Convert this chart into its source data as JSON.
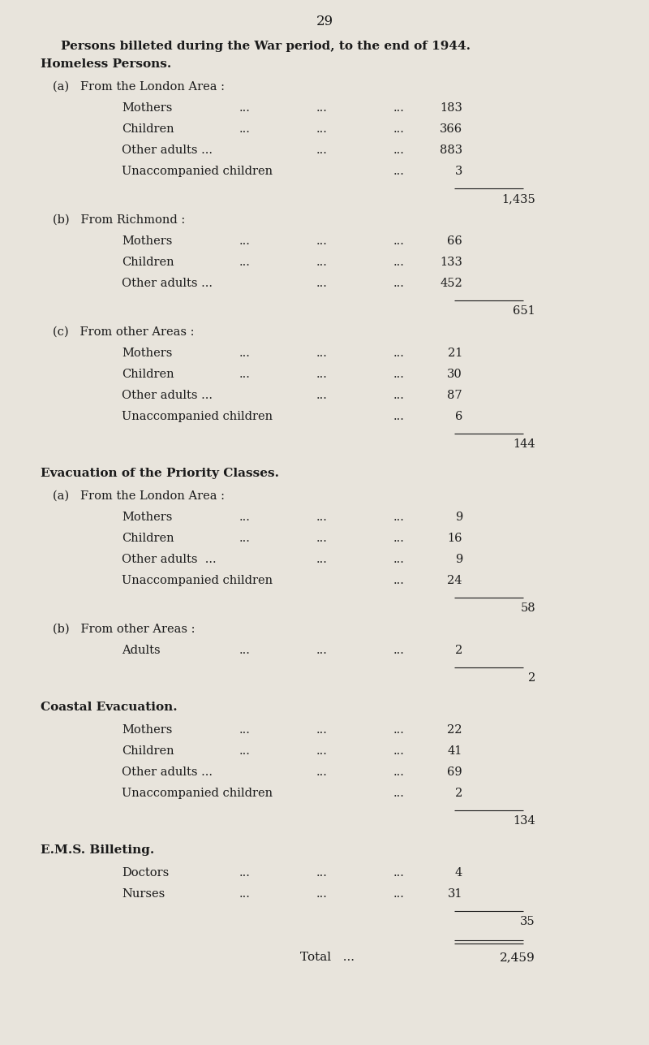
{
  "page_number": "29",
  "bg_color": "#e8e4dc",
  "text_color": "#1a1a1a",
  "title_bold": "Persons billeted during the War period, to the end of 1944.",
  "heading2": "Homeless Persons.",
  "sections": [
    {
      "heading_bold": "Homeless Persons.",
      "subsections": [
        {
          "label": "(a)   From the London Area :",
          "items": [
            {
              "name": "Mothers",
              "has_dots3": true,
              "value": "183"
            },
            {
              "name": "Children",
              "has_dots3": true,
              "value": "366"
            },
            {
              "name": "Other adults ...",
              "has_dots2": true,
              "value": "883"
            },
            {
              "name": "Unaccompanied children",
              "has_dots1": true,
              "value": "3"
            }
          ],
          "subtotal": "1,435"
        },
        {
          "label": "(b)   From Richmond :",
          "items": [
            {
              "name": "Mothers",
              "has_dots3": true,
              "value": "66"
            },
            {
              "name": "Children",
              "has_dots3": true,
              "value": "133"
            },
            {
              "name": "Other adults ...",
              "has_dots2": true,
              "value": "452"
            }
          ],
          "subtotal": "651"
        },
        {
          "label": "(c)   From other Areas :",
          "items": [
            {
              "name": "Mothers",
              "has_dots3": true,
              "value": "21"
            },
            {
              "name": "Children",
              "has_dots3": true,
              "value": "30"
            },
            {
              "name": "Other adults ...",
              "has_dots2": true,
              "value": "87"
            },
            {
              "name": "Unaccompanied children",
              "has_dots1": true,
              "value": "6"
            }
          ],
          "subtotal": "144"
        }
      ]
    },
    {
      "heading_bold": "Evacuation of the Priority Classes.",
      "subsections": [
        {
          "label": "(a)   From the London Area :",
          "items": [
            {
              "name": "Mothers",
              "has_dots3": true,
              "value": "9"
            },
            {
              "name": "Children",
              "has_dots3": true,
              "value": "16"
            },
            {
              "name": "Other adults  ...",
              "has_dots2": true,
              "value": "9"
            },
            {
              "name": "Unaccompanied children",
              "has_dots1": true,
              "value": "24"
            }
          ],
          "subtotal": "58"
        },
        {
          "label": "(b)   From other Areas :",
          "items": [
            {
              "name": "Adults",
              "has_dots3": true,
              "value": "2"
            }
          ],
          "subtotal": "2"
        }
      ]
    },
    {
      "heading_bold": "Coastal Evacuation.",
      "subsections": [
        {
          "label": null,
          "items": [
            {
              "name": "Mothers",
              "has_dots3": true,
              "value": "22"
            },
            {
              "name": "Children",
              "has_dots3": true,
              "value": "41"
            },
            {
              "name": "Other adults ...",
              "has_dots2": true,
              "value": "69"
            },
            {
              "name": "Unaccompanied children",
              "has_dots1": true,
              "value": "2"
            }
          ],
          "subtotal": "134"
        }
      ]
    },
    {
      "heading_bold": "E.M.S. Billeting.",
      "subsections": [
        {
          "label": null,
          "items": [
            {
              "name": "Doctors",
              "has_dots3": true,
              "value": "4"
            },
            {
              "name": "Nurses",
              "has_dots3": true,
              "value": "31"
            }
          ],
          "subtotal": "35"
        }
      ]
    }
  ],
  "total_label": "Total   ...",
  "total_value": "2,459",
  "font_size_page": 12,
  "font_size_title": 11,
  "font_size_heading": 11,
  "font_size_sub": 10.5,
  "font_size_item": 10.5,
  "font_size_total": 11
}
